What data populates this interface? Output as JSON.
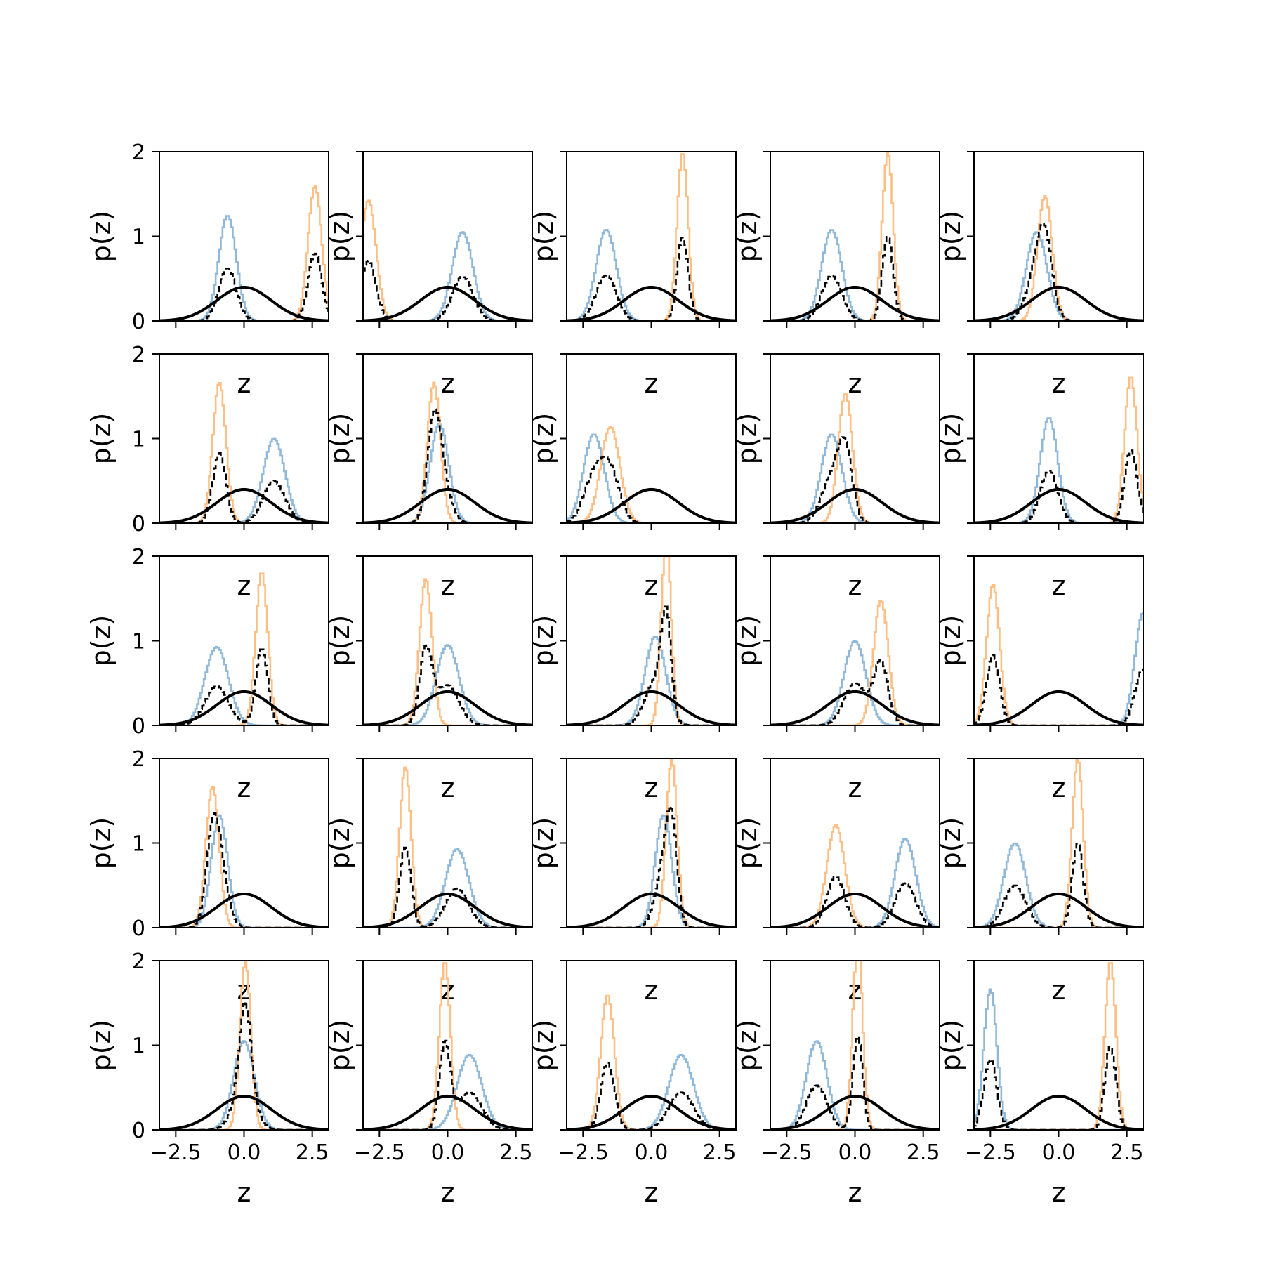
{
  "chart_data": {
    "type": "grid-of-histograms",
    "rows": 5,
    "cols": 5,
    "xlabel": "z",
    "ylabel": "p(z)",
    "xlim": [
      -3.1,
      3.1
    ],
    "ylim": [
      0,
      2
    ],
    "xticks": [
      -2.5,
      0.0,
      2.5
    ],
    "xtick_labels": [
      "−2.5",
      "0.0",
      "2.5"
    ],
    "yticks": [
      0,
      1,
      2
    ],
    "ytick_labels": [
      "0",
      "1",
      "2"
    ],
    "grid": false,
    "legend": "none",
    "colors": {
      "blue_hist": "#8fb8d9",
      "orange_hist": "#fdbf86",
      "mixture_hist": "#000000",
      "prior_curve": "#000000"
    },
    "prior": {
      "type": "gaussian",
      "mean": 0,
      "std": 1
    },
    "panels": [
      {
        "blue": {
          "mean": -0.6,
          "std": 0.32
        },
        "orange": {
          "mean": 2.6,
          "std": 0.25
        }
      },
      {
        "blue": {
          "mean": 0.55,
          "std": 0.38
        },
        "orange": {
          "mean": -2.9,
          "std": 0.28
        }
      },
      {
        "blue": {
          "mean": -1.65,
          "std": 0.37
        },
        "orange": {
          "mean": 1.15,
          "std": 0.2
        }
      },
      {
        "blue": {
          "mean": -0.85,
          "std": 0.37
        },
        "orange": {
          "mean": 1.2,
          "std": 0.2
        }
      },
      {
        "blue": {
          "mean": -0.8,
          "std": 0.38
        },
        "orange": {
          "mean": -0.5,
          "std": 0.27
        }
      },
      {
        "blue": {
          "mean": 1.1,
          "std": 0.4
        },
        "orange": {
          "mean": -0.9,
          "std": 0.24
        }
      },
      {
        "blue": {
          "mean": -0.3,
          "std": 0.34
        },
        "orange": {
          "mean": -0.5,
          "std": 0.24
        }
      },
      {
        "blue": {
          "mean": -2.1,
          "std": 0.38
        },
        "orange": {
          "mean": -1.5,
          "std": 0.35
        }
      },
      {
        "blue": {
          "mean": -0.85,
          "std": 0.38
        },
        "orange": {
          "mean": -0.35,
          "std": 0.26
        }
      },
      {
        "blue": {
          "mean": -0.35,
          "std": 0.32
        },
        "orange": {
          "mean": 2.65,
          "std": 0.23
        }
      },
      {
        "blue": {
          "mean": -1.0,
          "std": 0.43
        },
        "orange": {
          "mean": 0.65,
          "std": 0.22
        }
      },
      {
        "blue": {
          "mean": 0.0,
          "std": 0.42
        },
        "orange": {
          "mean": -0.8,
          "std": 0.23
        }
      },
      {
        "blue": {
          "mean": 0.15,
          "std": 0.38
        },
        "orange": {
          "mean": 0.55,
          "std": 0.18
        }
      },
      {
        "blue": {
          "mean": 0.0,
          "std": 0.4
        },
        "orange": {
          "mean": 0.95,
          "std": 0.27
        }
      },
      {
        "blue": {
          "mean": 3.1,
          "std": 0.3
        },
        "orange": {
          "mean": -2.4,
          "std": 0.24
        }
      },
      {
        "blue": {
          "mean": -0.9,
          "std": 0.3
        },
        "orange": {
          "mean": -1.15,
          "std": 0.24
        }
      },
      {
        "blue": {
          "mean": 0.35,
          "std": 0.43
        },
        "orange": {
          "mean": -1.55,
          "std": 0.21
        }
      },
      {
        "blue": {
          "mean": 0.45,
          "std": 0.3
        },
        "orange": {
          "mean": 0.75,
          "std": 0.2
        }
      },
      {
        "blue": {
          "mean": 1.85,
          "std": 0.38
        },
        "orange": {
          "mean": -0.7,
          "std": 0.33
        }
      },
      {
        "blue": {
          "mean": -1.6,
          "std": 0.4
        },
        "orange": {
          "mean": 0.7,
          "std": 0.2
        }
      },
      {
        "blue": {
          "mean": 0.0,
          "std": 0.38
        },
        "orange": {
          "mean": 0.05,
          "std": 0.2
        }
      },
      {
        "blue": {
          "mean": 0.8,
          "std": 0.45
        },
        "orange": {
          "mean": -0.1,
          "std": 0.2
        }
      },
      {
        "blue": {
          "mean": 1.1,
          "std": 0.45
        },
        "orange": {
          "mean": -1.6,
          "std": 0.25
        }
      },
      {
        "blue": {
          "mean": -1.4,
          "std": 0.38
        },
        "orange": {
          "mean": 0.1,
          "std": 0.18
        }
      },
      {
        "blue": {
          "mean": -2.5,
          "std": 0.24
        },
        "orange": {
          "mean": 1.9,
          "std": 0.2
        }
      }
    ]
  }
}
